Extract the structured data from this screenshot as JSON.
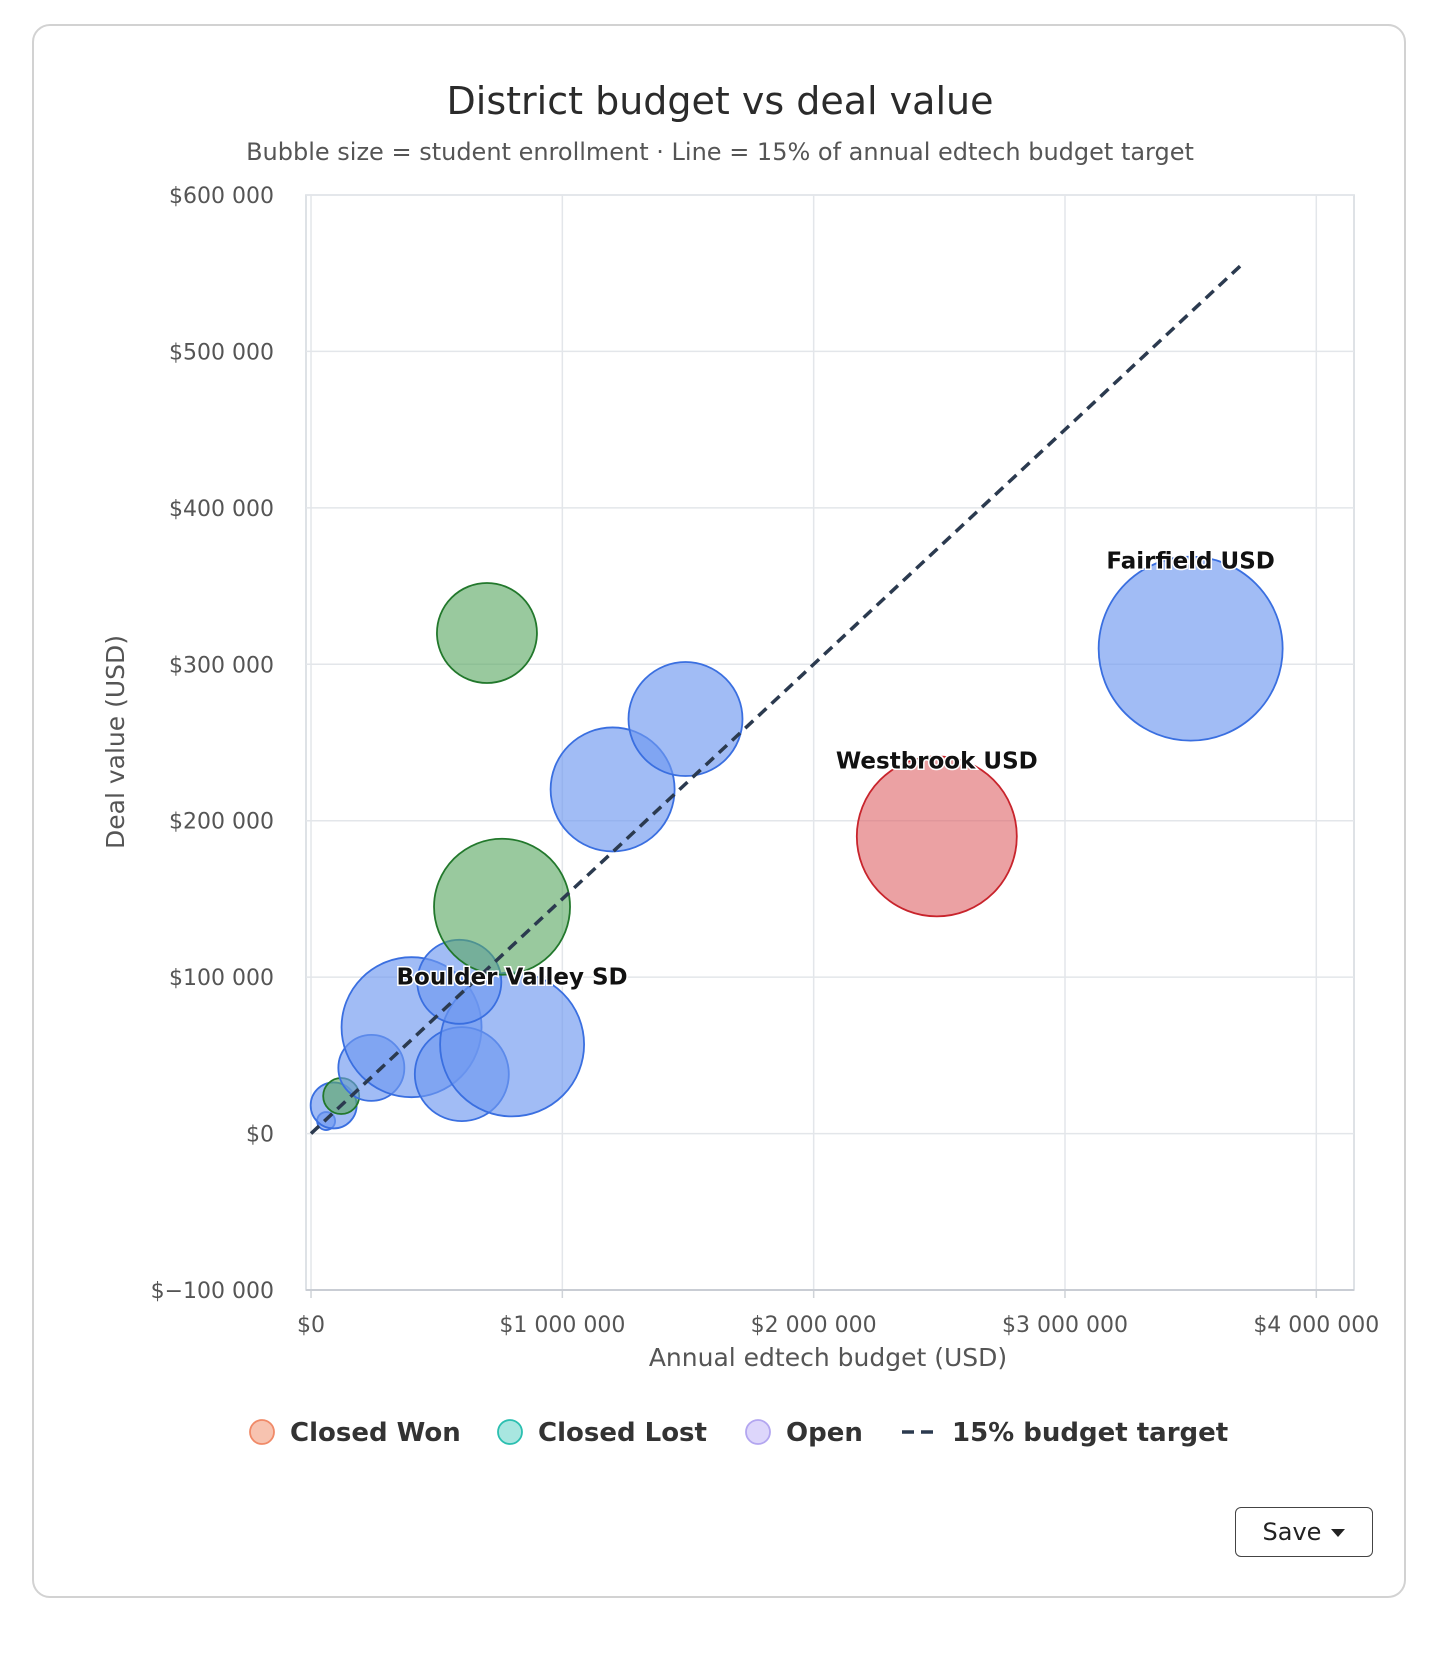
{
  "chart_data": {
    "type": "scatter",
    "title": "District budget vs deal value",
    "subtitle": "Bubble size = student enrollment · Line = 15% of annual edtech budget target",
    "xlabel": "Annual edtech budget (USD)",
    "ylabel": "Deal value (USD)",
    "xlim": [
      -20000,
      4150000
    ],
    "ylim": [
      -100000,
      600000
    ],
    "x_ticks": [
      0,
      1000000,
      2000000,
      3000000,
      4000000
    ],
    "x_tick_labels": [
      "$0",
      "$1 000 000",
      "$2 000 000",
      "$3 000 000",
      "$4 000 000"
    ],
    "y_ticks": [
      -100000,
      0,
      100000,
      200000,
      300000,
      400000,
      500000,
      600000
    ],
    "y_tick_labels": [
      "$−100 000",
      "$0",
      "$100 000",
      "$200 000",
      "$300 000",
      "$400 000",
      "$500 000",
      "$600 000"
    ],
    "grid": true,
    "legend_position": "bottom",
    "legend": [
      {
        "label": "Closed Won",
        "kind": "marker",
        "fill": "#f7c3b0",
        "stroke": "#f08a68"
      },
      {
        "label": "Closed Lost",
        "kind": "marker",
        "fill": "#a8e6e0",
        "stroke": "#2bbfb0"
      },
      {
        "label": "Open",
        "kind": "marker",
        "fill": "#ddd6fb",
        "stroke": "#b3a6f0"
      },
      {
        "label": "15% budget target",
        "kind": "dash",
        "stroke": "#2b3a4f"
      }
    ],
    "series_colors": {
      "blue": {
        "fill": "#6f98ef",
        "stroke": "#3a6fe0",
        "opacity": 0.65
      },
      "green": {
        "fill": "#5aa862",
        "stroke": "#22782c",
        "opacity": 0.62
      },
      "red": {
        "fill": "#dd6266",
        "stroke": "#c8242c",
        "opacity": 0.6
      }
    },
    "points": [
      {
        "x": 60000,
        "y": 8000,
        "r": 9,
        "color": "blue"
      },
      {
        "x": 90000,
        "y": 18000,
        "r": 23,
        "color": "blue"
      },
      {
        "x": 120000,
        "y": 24000,
        "r": 18,
        "color": "green"
      },
      {
        "x": 240000,
        "y": 42000,
        "r": 33,
        "color": "blue"
      },
      {
        "x": 400000,
        "y": 68000,
        "r": 70,
        "color": "blue"
      },
      {
        "x": 600000,
        "y": 38000,
        "r": 47,
        "color": "blue"
      },
      {
        "x": 800000,
        "y": 57000,
        "r": 72,
        "color": "blue",
        "label": "Boulder Valley SD"
      },
      {
        "x": 590000,
        "y": 97000,
        "r": 42,
        "color": "blue"
      },
      {
        "x": 760000,
        "y": 145000,
        "r": 68,
        "color": "green"
      },
      {
        "x": 700000,
        "y": 320000,
        "r": 50,
        "color": "green"
      },
      {
        "x": 1200000,
        "y": 220000,
        "r": 62,
        "color": "blue"
      },
      {
        "x": 1490000,
        "y": 265000,
        "r": 57,
        "color": "blue"
      },
      {
        "x": 2490000,
        "y": 190000,
        "r": 80,
        "color": "red",
        "label": "Westbrook USD"
      },
      {
        "x": 3500000,
        "y": 310000,
        "r": 92,
        "color": "blue",
        "label": "Fairfield USD"
      }
    ],
    "target_line": {
      "x": [
        0,
        3700000
      ],
      "y": [
        0,
        555000
      ],
      "color": "#2b3a4f"
    }
  },
  "toolbar": {
    "save_label": "Save"
  }
}
